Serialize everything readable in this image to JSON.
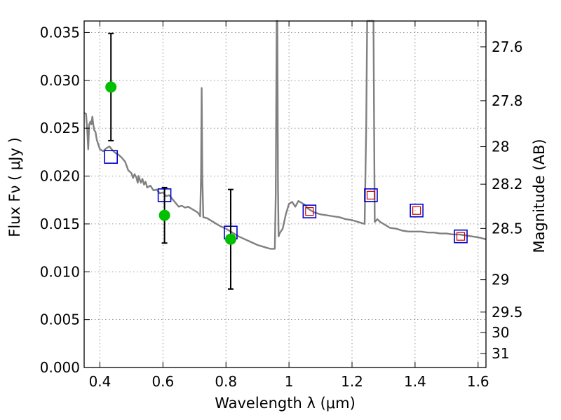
{
  "chart_data": {
    "type": "scatter",
    "xlabel": "Wavelength  λ (μm)",
    "ylabel": "Flux  Fν  ( μJy )",
    "ylabel_right": "Magnitude (AB)",
    "xlim": [
      0.35,
      1.625
    ],
    "ylim": [
      0.0,
      0.0362
    ],
    "grid": true,
    "x_ticks": [
      {
        "value": 0.4,
        "label": "0.4"
      },
      {
        "value": 0.6,
        "label": "0.6"
      },
      {
        "value": 0.8,
        "label": "0.8"
      },
      {
        "value": 1.0,
        "label": "1"
      },
      {
        "value": 1.2,
        "label": "1.2"
      },
      {
        "value": 1.4,
        "label": "1.4"
      },
      {
        "value": 1.6,
        "label": "1.6"
      }
    ],
    "y_ticks": [
      {
        "value": 0.0,
        "label": "0.000"
      },
      {
        "value": 0.005,
        "label": "0.005"
      },
      {
        "value": 0.01,
        "label": "0.010"
      },
      {
        "value": 0.015,
        "label": "0.015"
      },
      {
        "value": 0.02,
        "label": "0.020"
      },
      {
        "value": 0.025,
        "label": "0.025"
      },
      {
        "value": 0.03,
        "label": "0.030"
      },
      {
        "value": 0.035,
        "label": "0.035"
      }
    ],
    "right_ticks": [
      {
        "flux": 0.0335,
        "label": "27.6"
      },
      {
        "flux": 0.02787,
        "label": "27.8"
      },
      {
        "flux": 0.02307,
        "label": "28"
      },
      {
        "flux": 0.01915,
        "label": "28.2"
      },
      {
        "flux": 0.01453,
        "label": "28.5"
      },
      {
        "flux": 0.00917,
        "label": "29"
      },
      {
        "flux": 0.00579,
        "label": "29.5"
      },
      {
        "flux": 0.00365,
        "label": "30"
      },
      {
        "flux": 0.00145,
        "label": "31"
      }
    ],
    "series": [
      {
        "kind": "line",
        "color": "#808080",
        "points": [
          [
            0.35,
            0.0266
          ],
          [
            0.356,
            0.0265
          ],
          [
            0.36,
            0.0247
          ],
          [
            0.363,
            0.0228
          ],
          [
            0.366,
            0.0254
          ],
          [
            0.37,
            0.0257
          ],
          [
            0.373,
            0.0254
          ],
          [
            0.376,
            0.0262
          ],
          [
            0.379,
            0.0254
          ],
          [
            0.382,
            0.0248
          ],
          [
            0.386,
            0.0246
          ],
          [
            0.39,
            0.0238
          ],
          [
            0.395,
            0.0233
          ],
          [
            0.4,
            0.0228
          ],
          [
            0.41,
            0.0226
          ],
          [
            0.42,
            0.0229
          ],
          [
            0.43,
            0.0231
          ],
          [
            0.44,
            0.0227
          ],
          [
            0.45,
            0.0224
          ],
          [
            0.46,
            0.0222
          ],
          [
            0.47,
            0.0219
          ],
          [
            0.48,
            0.0215
          ],
          [
            0.49,
            0.0206
          ],
          [
            0.5,
            0.0203
          ],
          [
            0.505,
            0.0198
          ],
          [
            0.51,
            0.0202
          ],
          [
            0.515,
            0.0199
          ],
          [
            0.52,
            0.0193
          ],
          [
            0.523,
            0.02
          ],
          [
            0.53,
            0.0193
          ],
          [
            0.535,
            0.0197
          ],
          [
            0.54,
            0.0191
          ],
          [
            0.545,
            0.0194
          ],
          [
            0.55,
            0.0188
          ],
          [
            0.56,
            0.019
          ],
          [
            0.57,
            0.0185
          ],
          [
            0.58,
            0.0186
          ],
          [
            0.59,
            0.0182
          ],
          [
            0.6,
            0.0183
          ],
          [
            0.61,
            0.0179
          ],
          [
            0.62,
            0.018
          ],
          [
            0.63,
            0.0176
          ],
          [
            0.64,
            0.0172
          ],
          [
            0.65,
            0.0168
          ],
          [
            0.66,
            0.0169
          ],
          [
            0.67,
            0.0167
          ],
          [
            0.68,
            0.0168
          ],
          [
            0.69,
            0.0166
          ],
          [
            0.7,
            0.0164
          ],
          [
            0.71,
            0.0162
          ],
          [
            0.715,
            0.016
          ],
          [
            0.718,
            0.0158
          ],
          [
            0.721,
            0.02
          ],
          [
            0.723,
            0.0292
          ],
          [
            0.725,
            0.02
          ],
          [
            0.728,
            0.0157
          ],
          [
            0.74,
            0.0156
          ],
          [
            0.76,
            0.0152
          ],
          [
            0.78,
            0.0148
          ],
          [
            0.8,
            0.0145
          ],
          [
            0.82,
            0.0141
          ],
          [
            0.84,
            0.0137
          ],
          [
            0.86,
            0.0134
          ],
          [
            0.88,
            0.0131
          ],
          [
            0.9,
            0.0128
          ],
          [
            0.92,
            0.0126
          ],
          [
            0.94,
            0.0124
          ],
          [
            0.955,
            0.0124
          ],
          [
            0.958,
            0.018
          ],
          [
            0.961,
            0.0362
          ],
          [
            0.963,
            0.0362
          ],
          [
            0.965,
            0.019
          ],
          [
            0.967,
            0.0137
          ],
          [
            0.97,
            0.014
          ],
          [
            0.98,
            0.0145
          ],
          [
            0.99,
            0.016
          ],
          [
            1.0,
            0.0171
          ],
          [
            1.01,
            0.0173
          ],
          [
            1.02,
            0.0168
          ],
          [
            1.03,
            0.0174
          ],
          [
            1.04,
            0.0172
          ],
          [
            1.05,
            0.017
          ],
          [
            1.06,
            0.0166
          ],
          [
            1.08,
            0.0162
          ],
          [
            1.1,
            0.016
          ],
          [
            1.12,
            0.0159
          ],
          [
            1.14,
            0.0158
          ],
          [
            1.16,
            0.0157
          ],
          [
            1.18,
            0.0155
          ],
          [
            1.2,
            0.0154
          ],
          [
            1.22,
            0.0152
          ],
          [
            1.24,
            0.015
          ],
          [
            1.245,
            0.025
          ],
          [
            1.248,
            0.0362
          ],
          [
            1.25,
            0.0362
          ],
          [
            1.255,
            0.0362
          ],
          [
            1.265,
            0.0362
          ],
          [
            1.268,
            0.0362
          ],
          [
            1.27,
            0.025
          ],
          [
            1.272,
            0.0152
          ],
          [
            1.28,
            0.0155
          ],
          [
            1.29,
            0.0152
          ],
          [
            1.3,
            0.015
          ],
          [
            1.32,
            0.0146
          ],
          [
            1.34,
            0.0145
          ],
          [
            1.36,
            0.0143
          ],
          [
            1.38,
            0.0142
          ],
          [
            1.4,
            0.0142
          ],
          [
            1.42,
            0.0142
          ],
          [
            1.44,
            0.0141
          ],
          [
            1.46,
            0.0141
          ],
          [
            1.48,
            0.014
          ],
          [
            1.5,
            0.014
          ],
          [
            1.52,
            0.0139
          ],
          [
            1.54,
            0.0139
          ],
          [
            1.56,
            0.0138
          ],
          [
            1.58,
            0.0137
          ],
          [
            1.6,
            0.0136
          ],
          [
            1.625,
            0.0134
          ]
        ]
      },
      {
        "kind": "points_with_errorbars",
        "color": "#00c000",
        "points": [
          {
            "x": 0.435,
            "y": 0.0293,
            "yerr": 0.0056
          },
          {
            "x": 0.605,
            "y": 0.0159,
            "yerr": 0.0029
          },
          {
            "x": 0.815,
            "y": 0.0134,
            "yerr": 0.0052
          }
        ]
      },
      {
        "kind": "open_squares",
        "color": "#0000cc",
        "points": [
          {
            "x": 0.435,
            "y": 0.022
          },
          {
            "x": 0.605,
            "y": 0.018
          },
          {
            "x": 0.815,
            "y": 0.0141
          },
          {
            "x": 1.065,
            "y": 0.0163
          },
          {
            "x": 1.26,
            "y": 0.018
          },
          {
            "x": 1.405,
            "y": 0.0164
          },
          {
            "x": 1.545,
            "y": 0.0137
          }
        ]
      },
      {
        "kind": "open_squares_small",
        "color": "#cc0000",
        "points": [
          {
            "x": 1.065,
            "y": 0.0163
          },
          {
            "x": 1.26,
            "y": 0.018
          },
          {
            "x": 1.405,
            "y": 0.0164
          },
          {
            "x": 1.545,
            "y": 0.0137
          }
        ]
      }
    ]
  }
}
